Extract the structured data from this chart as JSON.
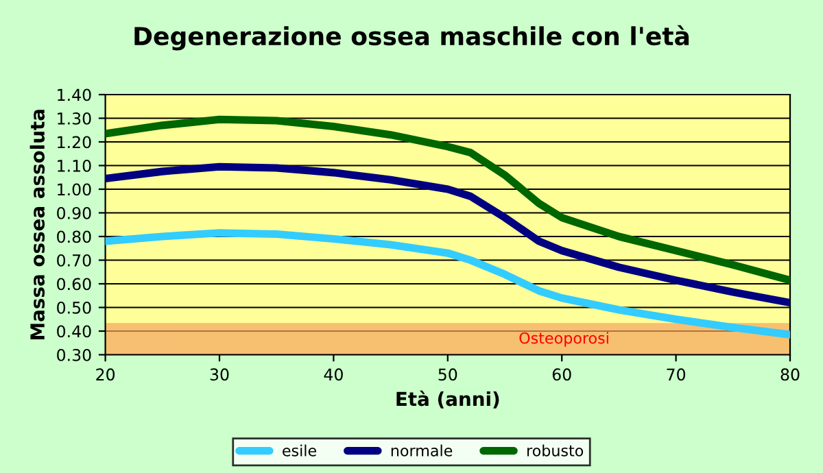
{
  "chart_data": {
    "type": "line",
    "title": "Degenerazione ossea maschile con l'età",
    "xlabel": "Età (anni)",
    "ylabel": "Massa ossea assoluta",
    "x": [
      20,
      25,
      30,
      35,
      40,
      45,
      50,
      52,
      55,
      58,
      60,
      65,
      70,
      75,
      80
    ],
    "series": [
      {
        "name": "esile",
        "color": "#33ccff",
        "values": [
          0.78,
          0.8,
          0.815,
          0.81,
          0.79,
          0.765,
          0.73,
          0.7,
          0.64,
          0.57,
          0.54,
          0.49,
          0.45,
          0.415,
          0.385
        ]
      },
      {
        "name": "normale",
        "color": "#000080",
        "values": [
          1.045,
          1.075,
          1.095,
          1.09,
          1.07,
          1.04,
          1.0,
          0.97,
          0.88,
          0.78,
          0.74,
          0.67,
          0.615,
          0.565,
          0.52
        ]
      },
      {
        "name": "robusto",
        "color": "#006600",
        "values": [
          1.235,
          1.27,
          1.295,
          1.29,
          1.265,
          1.23,
          1.18,
          1.155,
          1.06,
          0.94,
          0.88,
          0.8,
          0.74,
          0.68,
          0.615
        ]
      }
    ],
    "xlim": [
      20,
      80
    ],
    "xticks": [
      20,
      30,
      40,
      50,
      60,
      70,
      80
    ],
    "ylim": [
      0.3,
      1.4
    ],
    "yticks": [
      {
        "value": 0.3,
        "label": "0.30"
      },
      {
        "value": 0.4,
        "label": "0.40"
      },
      {
        "value": 0.5,
        "label": "0.50"
      },
      {
        "value": 0.6,
        "label": "0.60"
      },
      {
        "value": 0.7,
        "label": "0.70"
      },
      {
        "value": 0.8,
        "label": "0.80"
      },
      {
        "value": 0.9,
        "label": "0.90"
      },
      {
        "value": 1.0,
        "label": "1.00"
      },
      {
        "value": 1.1,
        "label": "1.10"
      },
      {
        "value": 1.2,
        "label": "1.20"
      },
      {
        "value": 1.3,
        "label": "1.30"
      },
      {
        "value": 1.4,
        "label": "1.40"
      }
    ],
    "bands": [
      {
        "axis": "y",
        "from": 0.3,
        "to": 0.43,
        "label": "Osteoporosi",
        "color": "#f4a460"
      }
    ],
    "grid": "y",
    "legend": "bottom",
    "marker": "none",
    "line_style": "solid"
  }
}
